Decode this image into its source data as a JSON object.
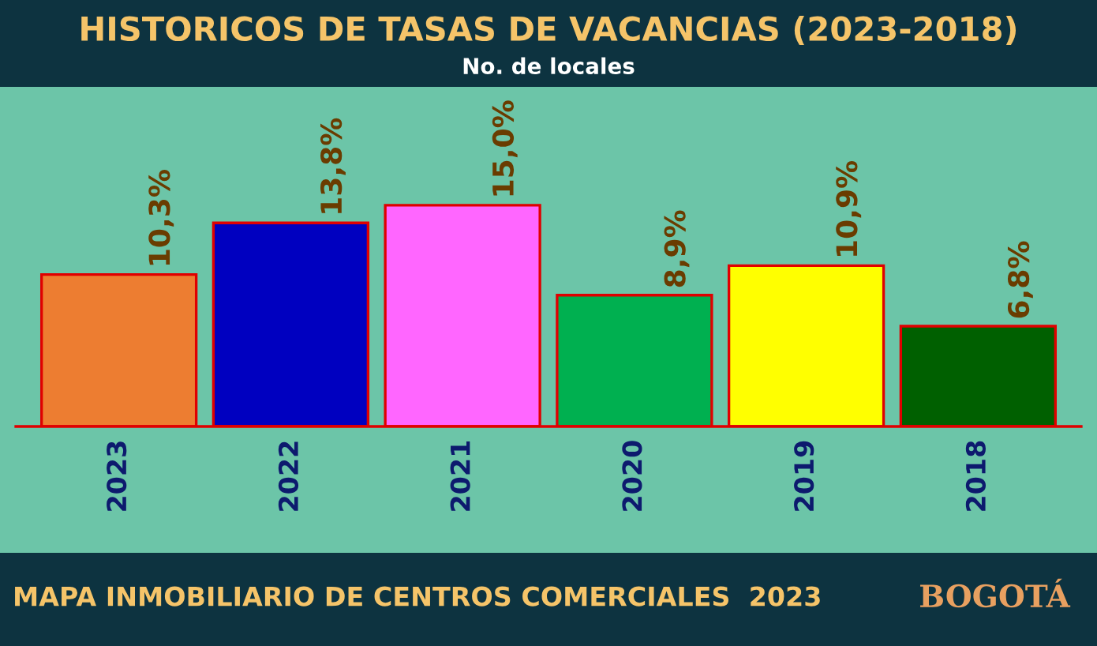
{
  "chart_data": {
    "type": "bar",
    "title": "HISTORICOS DE TASAS DE VACANCIAS (2023-2018)",
    "subtitle": "No. de locales",
    "categories": [
      "2023",
      "2022",
      "2021",
      "2020",
      "2019",
      "2018"
    ],
    "values": [
      10.3,
      13.8,
      15.0,
      8.9,
      10.9,
      6.8
    ],
    "value_labels": [
      "10,3%",
      "13,8%",
      "15,0%",
      "8,9%",
      "10,9%",
      "6,8%"
    ],
    "colors": [
      "#ed7d31",
      "#0000c0",
      "#ff66ff",
      "#00b050",
      "#ffff00",
      "#006000"
    ],
    "annotations": [
      "MAPA INMOBILIARIO DE CENTROS COMERCIALES  2023",
      "BOGOTÁ"
    ],
    "tick_labels": "x",
    "grid": false,
    "legend": false
  }
}
